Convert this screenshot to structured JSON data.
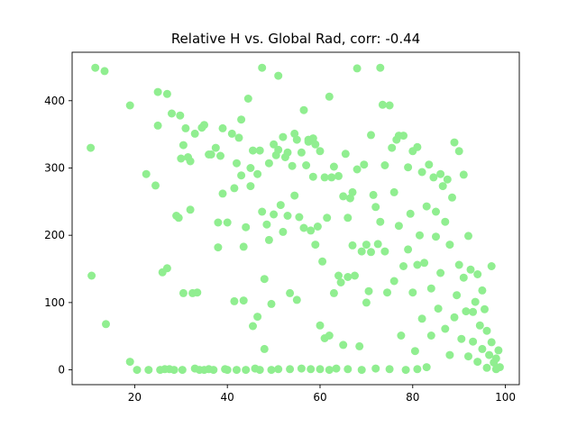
{
  "chart_data": {
    "type": "scatter",
    "title": "Relative H vs. Global Rad, corr: -0.44",
    "xlabel": "",
    "ylabel": "",
    "xlim": [
      6.5,
      103
    ],
    "ylim": [
      -22,
      472
    ],
    "xticks": [
      20,
      40,
      60,
      80,
      100
    ],
    "yticks": [
      0,
      100,
      200,
      300,
      400
    ],
    "grid": false,
    "legend": "none",
    "marker_color": "#90ee90",
    "points": [
      [
        10.5,
        330
      ],
      [
        10.7,
        140
      ],
      [
        11.5,
        449
      ],
      [
        13.5,
        444
      ],
      [
        13.8,
        68
      ],
      [
        19,
        393
      ],
      [
        19,
        12
      ],
      [
        20.5,
        0
      ],
      [
        22.5,
        291
      ],
      [
        23,
        0
      ],
      [
        24.5,
        274
      ],
      [
        25,
        413
      ],
      [
        25,
        363
      ],
      [
        25.5,
        0
      ],
      [
        26,
        145
      ],
      [
        26.5,
        1
      ],
      [
        27,
        410
      ],
      [
        27,
        151
      ],
      [
        27.5,
        1
      ],
      [
        28,
        381
      ],
      [
        28.5,
        0
      ],
      [
        29,
        229
      ],
      [
        29.5,
        226
      ],
      [
        29.8,
        378
      ],
      [
        30,
        314
      ],
      [
        30.3,
        0
      ],
      [
        30.5,
        334
      ],
      [
        30.5,
        114
      ],
      [
        31,
        359
      ],
      [
        31.5,
        316
      ],
      [
        32,
        310
      ],
      [
        32,
        238
      ],
      [
        32.5,
        114
      ],
      [
        33,
        351
      ],
      [
        33,
        2
      ],
      [
        33.5,
        115
      ],
      [
        34,
        0
      ],
      [
        34.5,
        360
      ],
      [
        35,
        364
      ],
      [
        35,
        0
      ],
      [
        36,
        320
      ],
      [
        36,
        1
      ],
      [
        36.5,
        320
      ],
      [
        37,
        0
      ],
      [
        37.5,
        330
      ],
      [
        38,
        219
      ],
      [
        38,
        182
      ],
      [
        38.5,
        318
      ],
      [
        39,
        359
      ],
      [
        39,
        262
      ],
      [
        39.5,
        1
      ],
      [
        40,
        219
      ],
      [
        40,
        0
      ],
      [
        41,
        351
      ],
      [
        41.5,
        270
      ],
      [
        41.5,
        102
      ],
      [
        42,
        307
      ],
      [
        42,
        0
      ],
      [
        42.5,
        345
      ],
      [
        43,
        372
      ],
      [
        43,
        289
      ],
      [
        43.5,
        103
      ],
      [
        43.5,
        183
      ],
      [
        44,
        212
      ],
      [
        44,
        0
      ],
      [
        44.5,
        403
      ],
      [
        45,
        273
      ],
      [
        45,
        300
      ],
      [
        45.5,
        326
      ],
      [
        45.5,
        65
      ],
      [
        46,
        2
      ],
      [
        46.5,
        79
      ],
      [
        46.5,
        291
      ],
      [
        47,
        326
      ],
      [
        47,
        0
      ],
      [
        47.5,
        449
      ],
      [
        47.5,
        235
      ],
      [
        48,
        135
      ],
      [
        48,
        31
      ],
      [
        48.5,
        216
      ],
      [
        49,
        307
      ],
      [
        49,
        193
      ],
      [
        49.5,
        98
      ],
      [
        49.5,
        0
      ],
      [
        50,
        335
      ],
      [
        50,
        231
      ],
      [
        50.5,
        319
      ],
      [
        51,
        437
      ],
      [
        51,
        327
      ],
      [
        51,
        1
      ],
      [
        51.5,
        245
      ],
      [
        52,
        346
      ],
      [
        52,
        205
      ],
      [
        52.5,
        316
      ],
      [
        53,
        323
      ],
      [
        53,
        229
      ],
      [
        53.5,
        114
      ],
      [
        53.5,
        1
      ],
      [
        54,
        303
      ],
      [
        54.5,
        351
      ],
      [
        54.5,
        259
      ],
      [
        55,
        342
      ],
      [
        55,
        104
      ],
      [
        55.5,
        227
      ],
      [
        56,
        323
      ],
      [
        56,
        2
      ],
      [
        56.5,
        386
      ],
      [
        56.5,
        211
      ],
      [
        57,
        304
      ],
      [
        57.5,
        342
      ],
      [
        57.5,
        339
      ],
      [
        58,
        207
      ],
      [
        58,
        1
      ],
      [
        58.5,
        344
      ],
      [
        58.5,
        287
      ],
      [
        59,
        335
      ],
      [
        59,
        186
      ],
      [
        59.5,
        213
      ],
      [
        60,
        325
      ],
      [
        60,
        66
      ],
      [
        60,
        1
      ],
      [
        60.5,
        161
      ],
      [
        61,
        286
      ],
      [
        61,
        47
      ],
      [
        61.5,
        226
      ],
      [
        62,
        406
      ],
      [
        62,
        51
      ],
      [
        62,
        0
      ],
      [
        62.5,
        286
      ],
      [
        63,
        302
      ],
      [
        63,
        114
      ],
      [
        63.5,
        2
      ],
      [
        64,
        288
      ],
      [
        64,
        140
      ],
      [
        64.5,
        130
      ],
      [
        65,
        258
      ],
      [
        65,
        37
      ],
      [
        65.5,
        321
      ],
      [
        66,
        226
      ],
      [
        66,
        138
      ],
      [
        66,
        1
      ],
      [
        66.5,
        255
      ],
      [
        67,
        264
      ],
      [
        67,
        185
      ],
      [
        67.5,
        140
      ],
      [
        68,
        448
      ],
      [
        68,
        298
      ],
      [
        68.5,
        35
      ],
      [
        69,
        176
      ],
      [
        69,
        0
      ],
      [
        69.5,
        305
      ],
      [
        70,
        186
      ],
      [
        70,
        100
      ],
      [
        70.5,
        117
      ],
      [
        71,
        349
      ],
      [
        71,
        175
      ],
      [
        71.5,
        260
      ],
      [
        72,
        242
      ],
      [
        72,
        2
      ],
      [
        72.5,
        187
      ],
      [
        73,
        449
      ],
      [
        73,
        220
      ],
      [
        73.5,
        394
      ],
      [
        74,
        304
      ],
      [
        74,
        176
      ],
      [
        74.5,
        115
      ],
      [
        75,
        393
      ],
      [
        75,
        1
      ],
      [
        75.5,
        330
      ],
      [
        76,
        264
      ],
      [
        76,
        132
      ],
      [
        76.5,
        342
      ],
      [
        77,
        348
      ],
      [
        77,
        214
      ],
      [
        77.5,
        51
      ],
      [
        78,
        348
      ],
      [
        78,
        154
      ],
      [
        78.5,
        0
      ],
      [
        79,
        301
      ],
      [
        79,
        179
      ],
      [
        79.5,
        232
      ],
      [
        80,
        325
      ],
      [
        80,
        115
      ],
      [
        80.5,
        28
      ],
      [
        81,
        331
      ],
      [
        81,
        156
      ],
      [
        81,
        1
      ],
      [
        81.5,
        200
      ],
      [
        82,
        294
      ],
      [
        82,
        76
      ],
      [
        82.5,
        159
      ],
      [
        83,
        243
      ],
      [
        83,
        4
      ],
      [
        83.5,
        305
      ],
      [
        84,
        121
      ],
      [
        84,
        51
      ],
      [
        84.5,
        286
      ],
      [
        85,
        235
      ],
      [
        85,
        198
      ],
      [
        85.5,
        91
      ],
      [
        86,
        291
      ],
      [
        86,
        144
      ],
      [
        86.5,
        273
      ],
      [
        87,
        220
      ],
      [
        87,
        61
      ],
      [
        87.5,
        283
      ],
      [
        88,
        186
      ],
      [
        88,
        22
      ],
      [
        88.5,
        256
      ],
      [
        89,
        338
      ],
      [
        89,
        78
      ],
      [
        89.5,
        111
      ],
      [
        90,
        325
      ],
      [
        90,
        156
      ],
      [
        90.5,
        46
      ],
      [
        91,
        290
      ],
      [
        91,
        137
      ],
      [
        91.5,
        87
      ],
      [
        92,
        199
      ],
      [
        92,
        20
      ],
      [
        92.5,
        149
      ],
      [
        93,
        86
      ],
      [
        93,
        42
      ],
      [
        93.5,
        101
      ],
      [
        94,
        142
      ],
      [
        94,
        12
      ],
      [
        94.5,
        66
      ],
      [
        95,
        118
      ],
      [
        95,
        31
      ],
      [
        95.5,
        90
      ],
      [
        96,
        58
      ],
      [
        96,
        3
      ],
      [
        96.5,
        22
      ],
      [
        97,
        154
      ],
      [
        97,
        41
      ],
      [
        97.5,
        11
      ],
      [
        98,
        17
      ],
      [
        98,
        1
      ],
      [
        98.5,
        29
      ],
      [
        98.8,
        4
      ]
    ]
  }
}
